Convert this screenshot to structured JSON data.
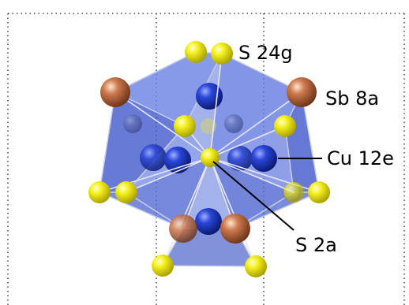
{
  "labels": {
    "s24g": "S 24g",
    "sb8a": "Sb 8a",
    "cu12e": "Cu 12e",
    "s2a": "S 2a"
  },
  "colors": {
    "polyhedron": "#4a63d6",
    "polyhedron_edge": "#c9cbe8",
    "sulfur": "#f2ee0a",
    "antimony": "#c8744a",
    "copper": "#1e38c8",
    "bond": "#e8e8f0",
    "dotted_line": "#444444"
  }
}
